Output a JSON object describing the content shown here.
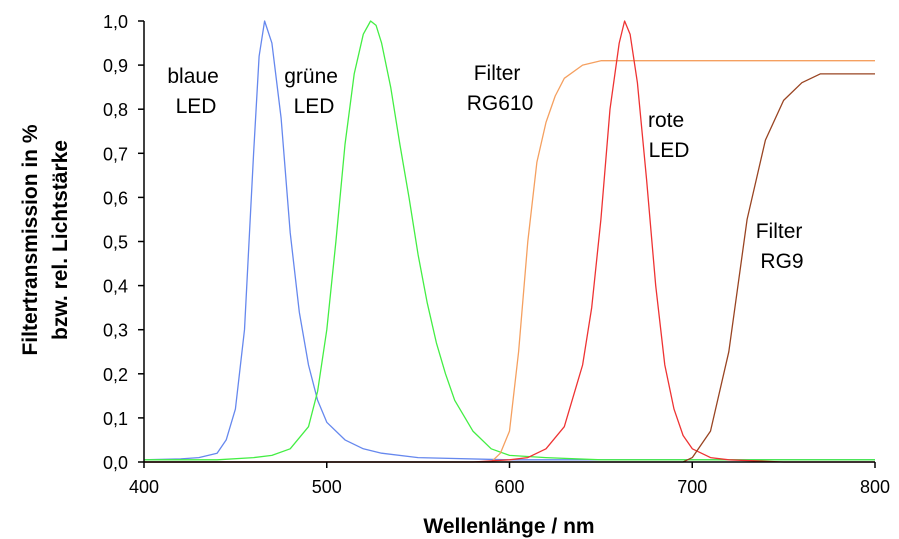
{
  "chart_data": {
    "type": "line",
    "title": "",
    "xlabel": "Wellenlänge / nm",
    "ylabel_lines": [
      "Filtertransmission in %",
      "bzw. rel. Lichtstärke"
    ],
    "xlim": [
      400,
      800
    ],
    "ylim": [
      0,
      1
    ],
    "x_ticks": [
      400,
      500,
      600,
      700,
      800
    ],
    "x_tick_labels": [
      "400",
      "500",
      "600",
      "700",
      "800"
    ],
    "y_ticks": [
      0,
      0.1,
      0.2,
      0.3,
      0.4,
      0.5,
      0.6,
      0.7,
      0.8,
      0.9,
      1.0
    ],
    "y_tick_labels": [
      "0,0",
      "0,1",
      "0,2",
      "0,3",
      "0,4",
      "0,5",
      "0,6",
      "0,7",
      "0,8",
      "0,9",
      "1,0"
    ],
    "grid": false,
    "legend": "none",
    "series": [
      {
        "key": "blue_led",
        "color": "#6688ee",
        "x": [
          400,
          420,
          430,
          440,
          445,
          450,
          455,
          460,
          463,
          466,
          470,
          475,
          480,
          485,
          490,
          495,
          500,
          510,
          520,
          530,
          550,
          600,
          700,
          800
        ],
        "y": [
          0.005,
          0.007,
          0.01,
          0.02,
          0.05,
          0.12,
          0.3,
          0.7,
          0.92,
          1.0,
          0.95,
          0.78,
          0.52,
          0.34,
          0.22,
          0.14,
          0.09,
          0.05,
          0.03,
          0.02,
          0.01,
          0.005,
          0.005,
          0.005
        ]
      },
      {
        "key": "green_led",
        "color": "#44ee44",
        "x": [
          400,
          440,
          460,
          470,
          480,
          490,
          495,
          500,
          505,
          510,
          515,
          520,
          524,
          527,
          530,
          535,
          540,
          545,
          550,
          555,
          560,
          565,
          570,
          580,
          590,
          600,
          620,
          650,
          700,
          800
        ],
        "y": [
          0.005,
          0.005,
          0.01,
          0.015,
          0.03,
          0.08,
          0.16,
          0.3,
          0.5,
          0.72,
          0.88,
          0.97,
          1.0,
          0.99,
          0.95,
          0.85,
          0.72,
          0.6,
          0.47,
          0.36,
          0.27,
          0.2,
          0.14,
          0.07,
          0.03,
          0.015,
          0.01,
          0.005,
          0.005,
          0.005
        ]
      },
      {
        "key": "filter_rg610",
        "color": "#f5a060",
        "x": [
          400,
          590,
          595,
          600,
          605,
          610,
          615,
          620,
          625,
          630,
          640,
          650,
          660,
          700,
          800
        ],
        "y": [
          0.0,
          0.0,
          0.02,
          0.07,
          0.25,
          0.5,
          0.68,
          0.77,
          0.83,
          0.87,
          0.9,
          0.91,
          0.91,
          0.91,
          0.91
        ],
        "label_lines": [
          "Filter",
          "RG610"
        ]
      },
      {
        "key": "red_led",
        "color": "#ee3333",
        "x": [
          400,
          580,
          600,
          610,
          620,
          630,
          640,
          645,
          650,
          655,
          660,
          663,
          666,
          670,
          675,
          680,
          685,
          690,
          695,
          700,
          710,
          720,
          750,
          800
        ],
        "y": [
          0.0,
          0.0,
          0.005,
          0.01,
          0.03,
          0.08,
          0.22,
          0.35,
          0.55,
          0.8,
          0.95,
          1.0,
          0.97,
          0.86,
          0.64,
          0.4,
          0.22,
          0.12,
          0.06,
          0.03,
          0.01,
          0.005,
          0.0,
          0.0
        ],
        "label_lines": [
          "rote",
          "LED"
        ]
      },
      {
        "key": "filter_rg9",
        "color": "#994422",
        "x": [
          400,
          695,
          700,
          705,
          710,
          720,
          730,
          740,
          750,
          760,
          770,
          780,
          800
        ],
        "y": [
          0.0,
          0.0,
          0.01,
          0.04,
          0.07,
          0.25,
          0.55,
          0.73,
          0.82,
          0.86,
          0.88,
          0.88,
          0.88
        ],
        "label_lines": [
          "Filter",
          "RG9"
        ]
      }
    ],
    "annotations": [
      {
        "key": "blue_led",
        "lines": [
          "blaue",
          "LED"
        ]
      },
      {
        "key": "green_led",
        "lines": [
          "grüne",
          "LED"
        ]
      },
      {
        "key": "filter_rg610",
        "lines": [
          "Filter",
          "RG610"
        ]
      },
      {
        "key": "red_led",
        "lines": [
          "rote",
          "LED"
        ]
      },
      {
        "key": "filter_rg9",
        "lines": [
          "Filter",
          "RG9"
        ]
      }
    ]
  }
}
